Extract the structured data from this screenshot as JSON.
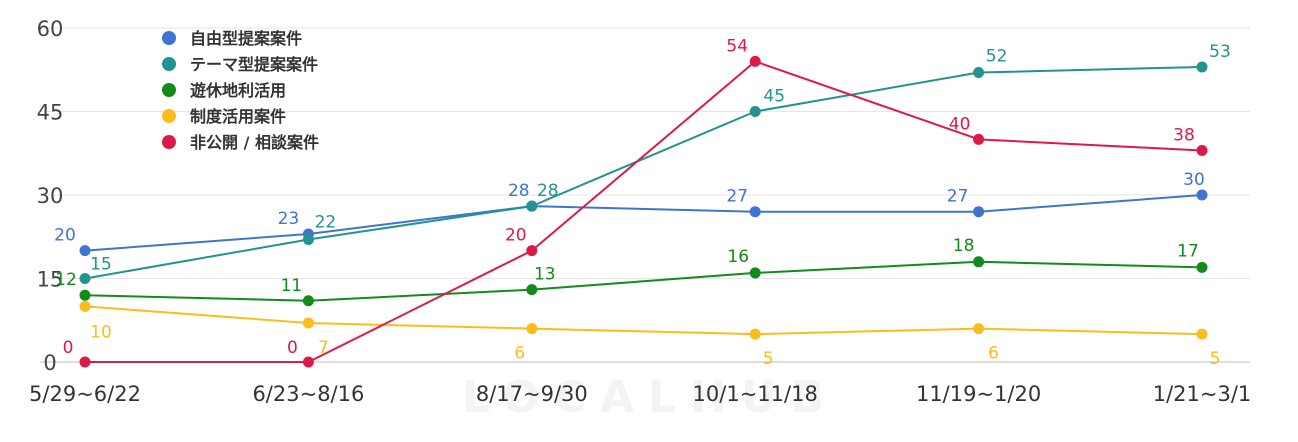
{
  "chart_data": {
    "type": "line",
    "title": "",
    "xlabel": "",
    "ylabel": "",
    "categories": [
      "5/29~6/22",
      "6/23~8/16",
      "8/17~9/30",
      "10/1~11/18",
      "11/19~1/20",
      "1/21~3/1"
    ],
    "ylim": [
      0,
      60
    ],
    "yticks": [
      0,
      15,
      30,
      45,
      60
    ],
    "grid": true,
    "legend_position": "top-left",
    "series": [
      {
        "name": "自由型提案案件",
        "color": "#3f74d1",
        "values": [
          20,
          23,
          28,
          27,
          27,
          30
        ]
      },
      {
        "name": "テーマ型提案案件",
        "color": "#22938f",
        "values": [
          15,
          22,
          28,
          45,
          52,
          53
        ]
      },
      {
        "name": "遊休地利活用",
        "color": "#138a1c",
        "values": [
          12,
          11,
          13,
          16,
          18,
          17
        ]
      },
      {
        "name": "制度活用案件",
        "color": "#fbbd1d",
        "values": [
          10,
          7,
          6,
          5,
          6,
          5
        ]
      },
      {
        "name": "非公開 / 相談案件",
        "color": "#dd1a47",
        "values": [
          0,
          0,
          20,
          54,
          40,
          38
        ]
      }
    ]
  },
  "watermark": {
    "text": "LOCALHUB"
  }
}
